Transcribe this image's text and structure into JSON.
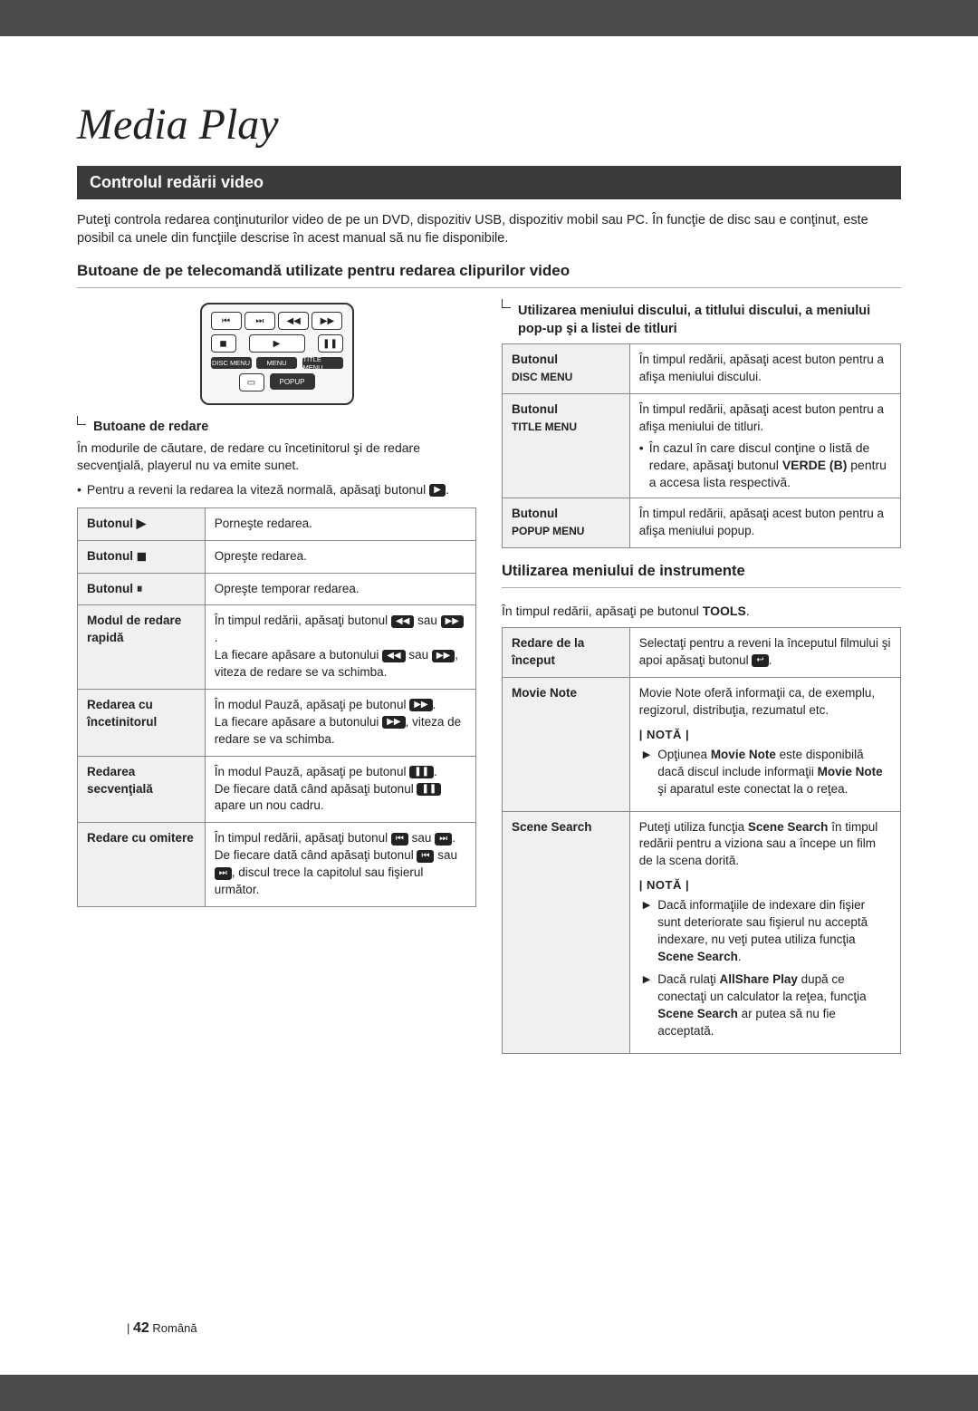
{
  "title": "Media Play",
  "section_bar": "Controlul redării video",
  "intro": "Puteţi controla redarea conţinuturilor video de pe un DVD, dispozitiv USB, dispozitiv mobil sau PC. În funcţie de disc sau e conţinut, este posibil ca unele din funcţiile descrise în acest manual să nu fie disponibile.",
  "subheading": "Butoane de pe telecomandă utilizate pentru redarea clipurilor video",
  "left": {
    "mini_head": "Butoane de redare",
    "para": "În modurile de căutare, de redare cu încetinitorul şi de redare secvenţială, playerul nu va emite sunet.",
    "bullet_pre": "Pentru a reveni la redarea la viteză normală, apăsaţi butonul ",
    "bullet_post": ".",
    "rows": [
      {
        "k": "Butonul ▶",
        "v": "Porneşte redarea."
      },
      {
        "k": "Butonul ◼",
        "v": "Opreşte redarea."
      },
      {
        "k": "Butonul ⏸",
        "v": "Opreşte temporar redarea."
      }
    ],
    "row4": {
      "k": "Modul de redare rapidă",
      "pre": "În timpul redării, apăsaţi butonul ",
      "mid": " sau ",
      "post": ".",
      "line2_pre": "La fiecare apăsare a butonului ",
      "line2_mid": " sau ",
      "line2_post": ", viteza de redare se va schimba."
    },
    "row5": {
      "k": "Redarea cu încetinitorul",
      "pre": "În modul Pauză, apăsaţi pe butonul ",
      "post": ".",
      "line2_pre": "La fiecare apăsare a butonului ",
      "line2_post": ", viteza de redare se va schimba."
    },
    "row6": {
      "k": "Redarea secvenţială",
      "pre": "În modul Pauză, apăsaţi pe butonul ",
      "post": ".",
      "line2_pre": "De fiecare dată când apăsaţi butonul ",
      "line2_post": " apare un nou cadru."
    },
    "row7": {
      "k": "Redare cu omitere",
      "pre": "În timpul redării, apăsaţi butonul ",
      "mid": " sau ",
      "post": ".",
      "line2": "De fiecare dată când apăsaţi butonul ",
      "line2_mid": " sau ",
      "line2_post": ", discul trece la capitolul sau fişierul următor."
    }
  },
  "right": {
    "mini_head": "Utilizarea meniului discului, a titlului discului, a meniului pop-up şi a listei de titluri",
    "rows": [
      {
        "k1": "Butonul",
        "k2": "DISC MENU",
        "v": "În timpul redării, apăsaţi acest buton pentru a afişa meniului discului."
      }
    ],
    "row2": {
      "k1": "Butonul",
      "k2": "TITLE MENU",
      "v": "În timpul redării, apăsaţi acest buton pentru a afişa meniului de titluri.",
      "b_pre": "În cazul în care discul conţine o listă de redare, apăsaţi butonul ",
      "b_strong": "VERDE (B)",
      "b_post": " pentru a accesa lista respectivă."
    },
    "row3": {
      "k1": "Butonul",
      "k2": "POPUP MENU",
      "v": "În timpul redării, apăsaţi acest buton pentru a afişa meniului popup."
    },
    "tools_head": "Utilizarea meniului de instrumente",
    "tools_para_pre": "În timpul redării, apăsaţi pe butonul ",
    "tools_para_strong": "TOOLS",
    "tools_para_post": ".",
    "trow1": {
      "k": "Redare de la început",
      "v_pre": "Selectaţi pentru a reveni la începutul filmului şi apoi apăsaţi butonul ",
      "v_post": "."
    },
    "trow2": {
      "k": "Movie Note",
      "v": "Movie Note oferă informaţii ca, de exemplu, regizorul, distribuţia, rezumatul etc.",
      "note": "| NOTĂ |",
      "n1_pre": "Opţiunea ",
      "n1_s1": "Movie Note",
      "n1_mid": " este disponibilă dacă discul include informaţii ",
      "n1_s2": "Movie Note",
      "n1_post": " şi aparatul este conectat la o reţea."
    },
    "trow3": {
      "k": "Scene Search",
      "v_pre": "Puteţi utiliza funcţia ",
      "v_s": "Scene Search",
      "v_post": " în timpul redării pentru a viziona sau a începe un film de la scena dorită.",
      "note": "| NOTĂ |",
      "n1_pre": "Dacă informaţiile de indexare din fişier sunt deteriorate sau fişierul nu acceptă indexare, nu veţi putea utiliza funcţia ",
      "n1_s": "Scene Search",
      "n1_post": ".",
      "n2_pre": "Dacă rulaţi ",
      "n2_s1": "AllShare Play",
      "n2_mid": " după ce conectaţi un calculator la reţea, funcţia ",
      "n2_s2": "Scene Search",
      "n2_post": " ar putea să nu fie acceptată."
    }
  },
  "remote_labels": {
    "disc": "DISC MENU",
    "menu": "MENU",
    "title": "TITLE MENU",
    "popup": "POPUP"
  },
  "footer": {
    "page": "42",
    "lang": "Română"
  },
  "icons": {
    "play": "▶",
    "stop": "◼",
    "pause": "❚❚",
    "rew": "◀◀",
    "ff": "▶▶",
    "prev": "⏮",
    "next": "⏭",
    "enter": "↩"
  }
}
